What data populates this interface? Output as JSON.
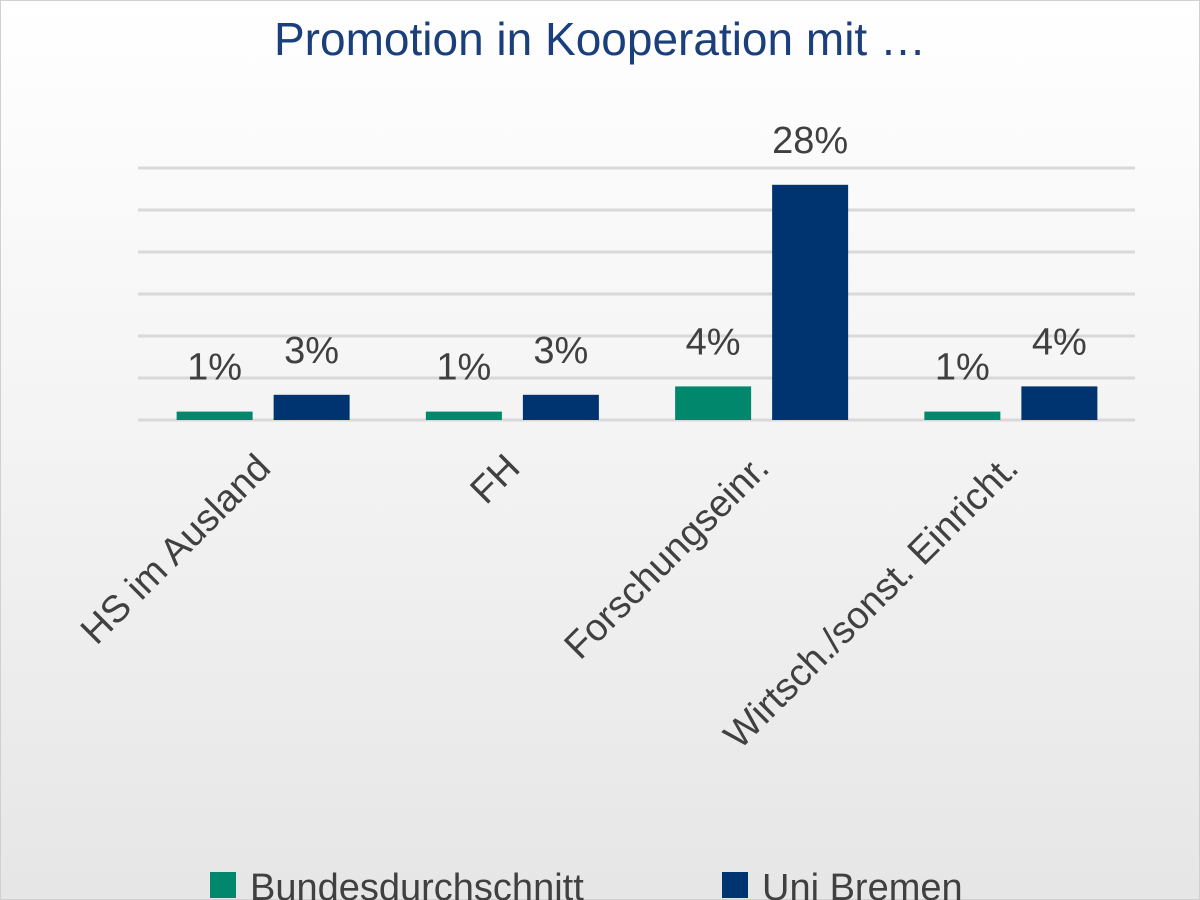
{
  "chart_data": {
    "type": "bar",
    "title": "Promotion in Kooperation mit …",
    "categories": [
      "HS im Ausland",
      "FH",
      "Forschungseinr.",
      "Wirtsch./sonst. Einricht."
    ],
    "series": [
      {
        "name": "Bundesdurchschnitt",
        "values": [
          1,
          1,
          4,
          1
        ],
        "labels": [
          "1%",
          "1%",
          "4%",
          "1%"
        ],
        "color": "#00876c"
      },
      {
        "name": "Uni Bremen",
        "values": [
          3,
          3,
          28,
          4
        ],
        "labels": [
          "3%",
          "3%",
          "28%",
          "4%"
        ],
        "color": "#003470"
      }
    ],
    "ylim": [
      0,
      30
    ],
    "ytick_step": 5,
    "grid": true,
    "y_axis_labels_shown": false,
    "legend": "bottom",
    "gridline_color": "#d9d9d9"
  }
}
